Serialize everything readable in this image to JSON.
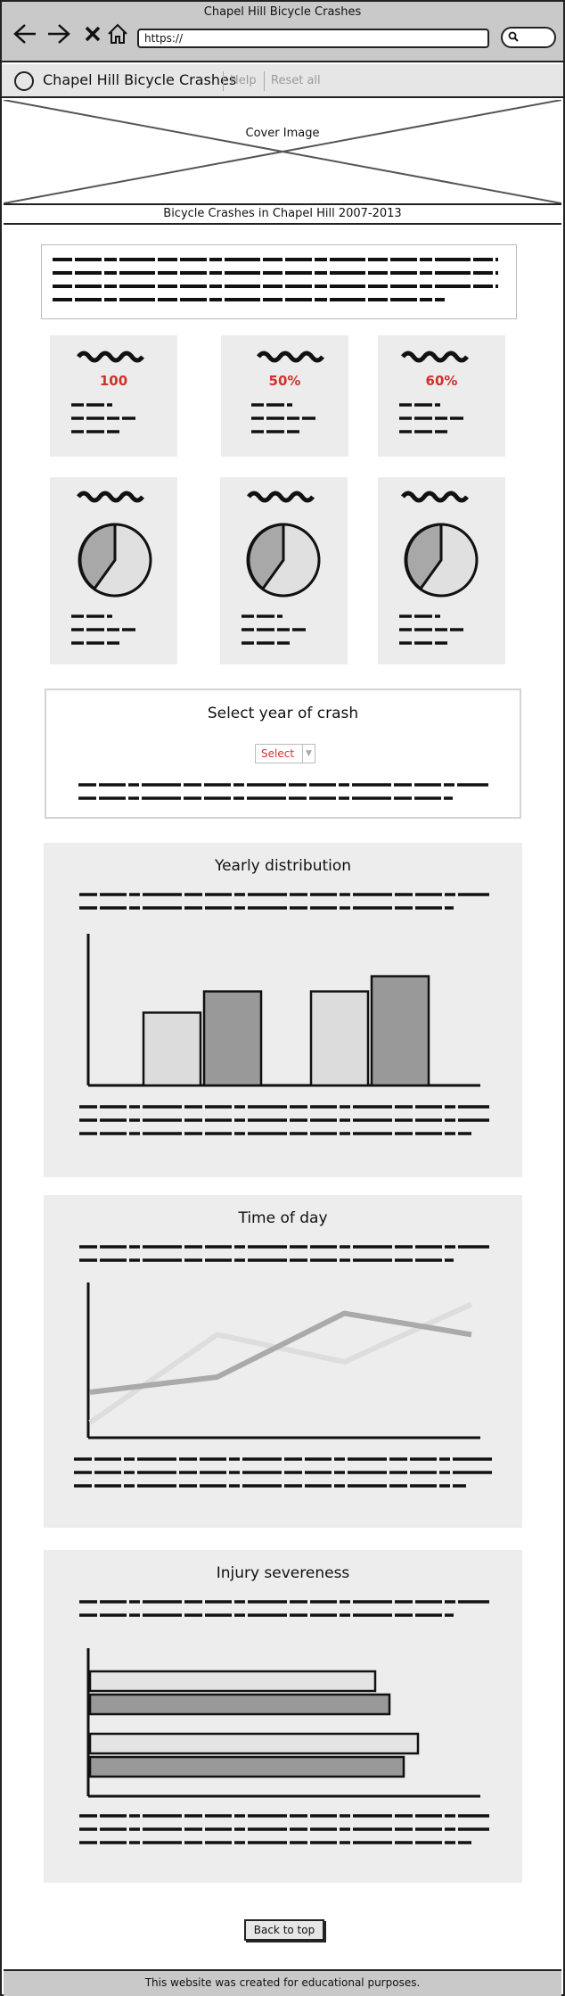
{
  "browser": {
    "title": "Chapel Hill Bicycle Crashes",
    "url": "https://",
    "icons": [
      "back-arrow-icon",
      "forward-arrow-icon",
      "close-icon",
      "home-icon",
      "search-icon"
    ]
  },
  "navbar": {
    "brand": "Chapel Hill Bicycle Crashes",
    "help": "Help",
    "reset": "Reset all"
  },
  "cover": {
    "label": "Cover Image",
    "subtitle": "Bicycle Crashes in Chapel Hill 2007-2013"
  },
  "stats": [
    {
      "value": "100"
    },
    {
      "value": "50%"
    },
    {
      "value": "60%"
    }
  ],
  "select_year": {
    "title": "Select year of crash",
    "select_label": "Select"
  },
  "sections": {
    "yearly": {
      "title": "Yearly distribution"
    },
    "time": {
      "title": "Time of day"
    },
    "injury": {
      "title": "Injury severeness"
    }
  },
  "chart_data": [
    {
      "type": "bar",
      "categories": [
        "",
        ""
      ],
      "series": [
        {
          "values": [
            0.48,
            0.62
          ]
        },
        {
          "values": [
            0.62,
            0.72
          ]
        }
      ],
      "colors": [
        "#dcdcdc",
        "#999999"
      ]
    },
    {
      "type": "line",
      "x": [
        0,
        1,
        2,
        3
      ],
      "series": [
        {
          "values": [
            0.3,
            0.4,
            0.82,
            0.68
          ],
          "color": "#aaaaaa"
        },
        {
          "values": [
            0.1,
            0.68,
            0.5,
            0.88
          ],
          "color": "#dddddd"
        }
      ]
    },
    {
      "type": "bar",
      "orientation": "horizontal",
      "categories": [
        "",
        ""
      ],
      "series": [
        {
          "values": [
            0.8,
            0.92
          ]
        },
        {
          "values": [
            0.84,
            0.88
          ]
        }
      ],
      "colors": [
        "#e4e4e4",
        "#999999"
      ]
    }
  ],
  "buttons": {
    "back_to_top": "Back to top"
  },
  "footer": {
    "text": "This website was created for educational purposes."
  }
}
